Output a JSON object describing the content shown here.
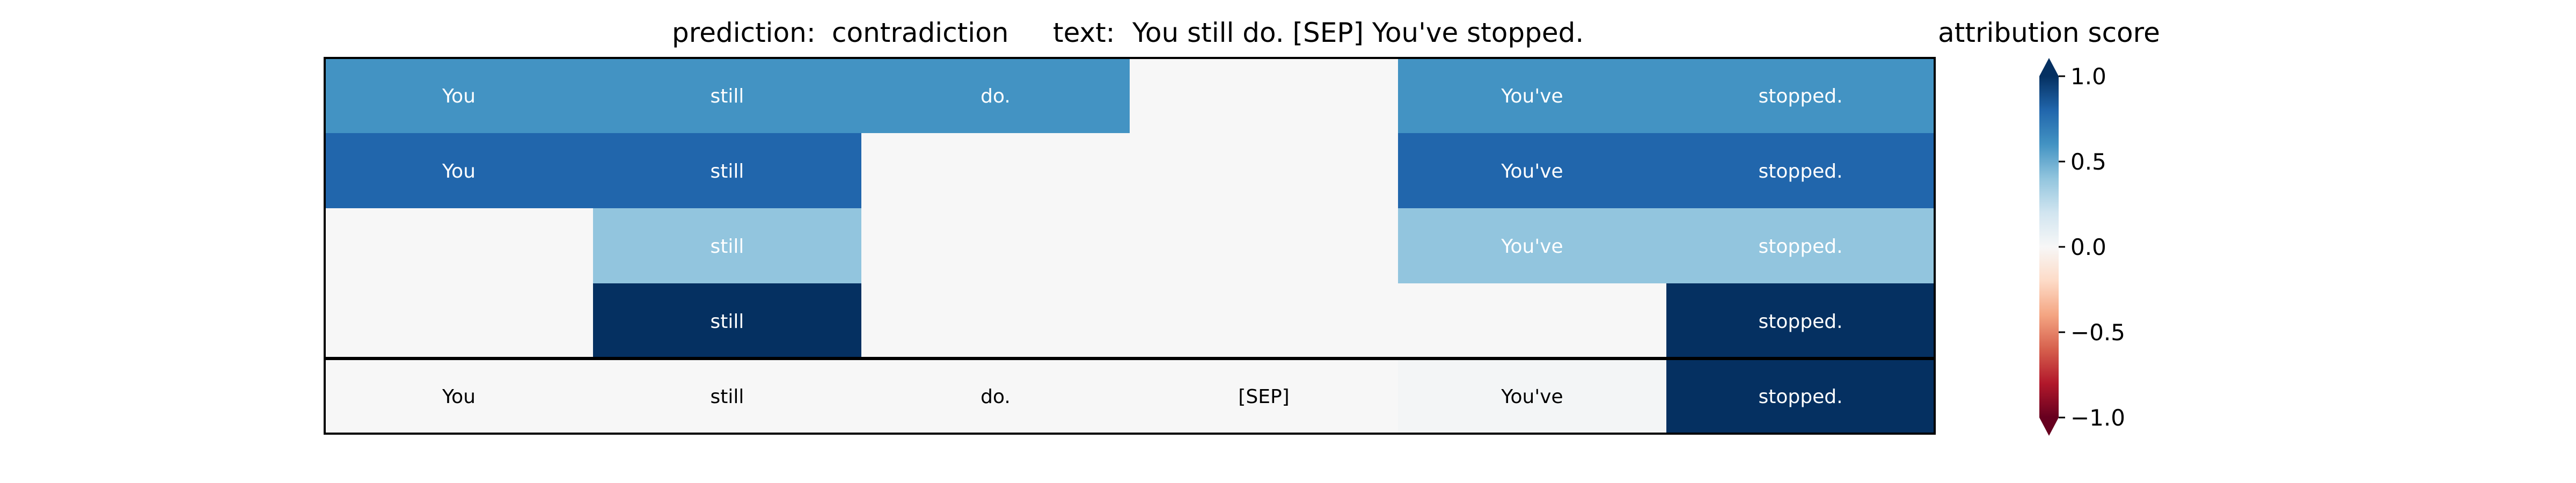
{
  "header": {
    "prediction_label": "prediction:",
    "prediction_value": "contradiction",
    "text_label": "text:",
    "text_value": "You still do. [SEP] You've stopped."
  },
  "chart_data": {
    "type": "heatmap",
    "tokens": [
      "You",
      "still",
      "do.",
      "[SEP]",
      "You've",
      "stopped."
    ],
    "rows": [
      {
        "values": [
          0.6,
          0.6,
          0.6,
          0.0,
          0.6,
          0.6
        ],
        "labels_shown": [
          true,
          true,
          true,
          false,
          true,
          true
        ]
      },
      {
        "values": [
          0.8,
          0.8,
          0.0,
          0.0,
          0.8,
          0.8
        ],
        "labels_shown": [
          true,
          true,
          false,
          false,
          true,
          true
        ]
      },
      {
        "values": [
          0.0,
          0.4,
          0.0,
          0.0,
          0.4,
          0.4
        ],
        "labels_shown": [
          false,
          true,
          false,
          false,
          true,
          true
        ]
      },
      {
        "values": [
          0.0,
          1.0,
          0.0,
          0.0,
          0.0,
          1.0
        ],
        "labels_shown": [
          false,
          true,
          false,
          false,
          false,
          true
        ]
      },
      {
        "values": [
          0.0,
          0.0,
          0.0,
          0.0,
          0.02,
          1.0
        ],
        "labels_shown": [
          true,
          true,
          true,
          true,
          true,
          true
        ]
      }
    ],
    "separator_after_row": 4,
    "colorbar": {
      "title": "attribution score",
      "colormap": "RdBu",
      "range": [
        -1.0,
        1.0
      ],
      "ticks": [
        1.0,
        0.5,
        0.0,
        -0.5,
        -1.0
      ],
      "tick_labels": [
        "1.0",
        "0.5",
        "0.0",
        "−0.5",
        "−1.0"
      ],
      "extend": "both"
    },
    "grid": false
  }
}
